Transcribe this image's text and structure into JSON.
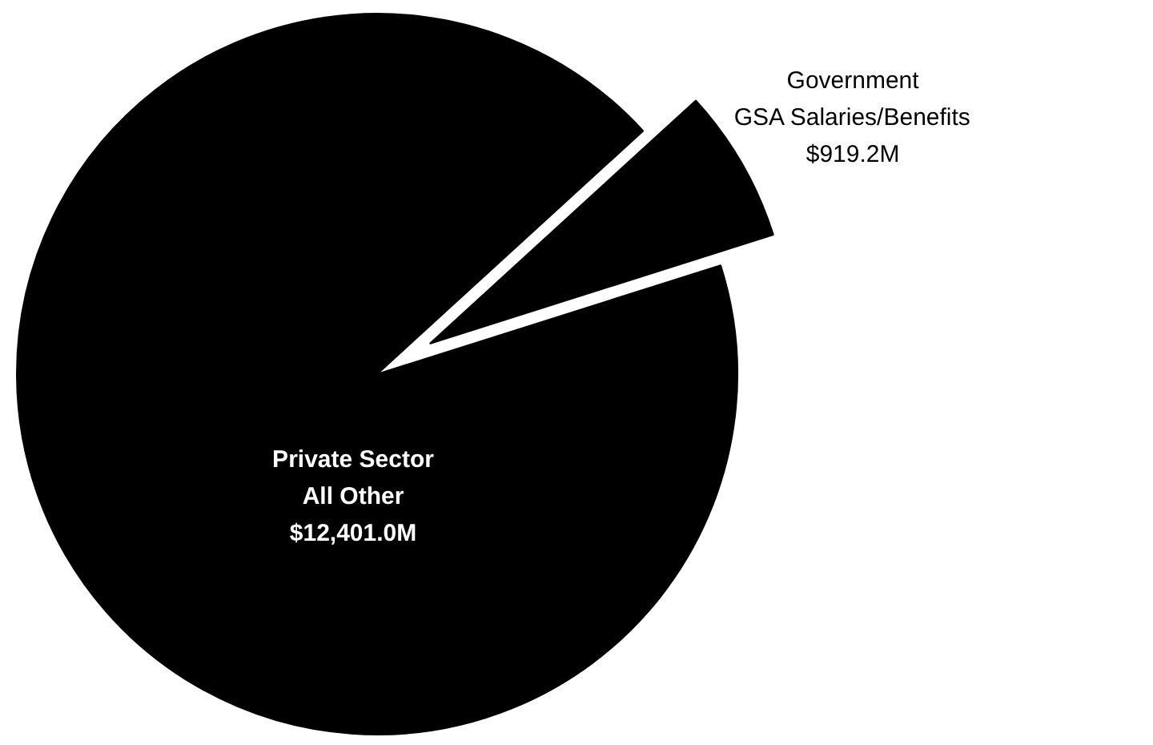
{
  "chart_data": {
    "type": "pie",
    "categories": [
      "Private Sector\nAll Other",
      "Government\nGSA Salaries/Benefits"
    ],
    "values": [
      12401.0,
      919.2
    ],
    "colors": [
      "#000000",
      "#000000"
    ],
    "value_labels": [
      "$12,401.0M",
      "$919.2M"
    ]
  }
}
